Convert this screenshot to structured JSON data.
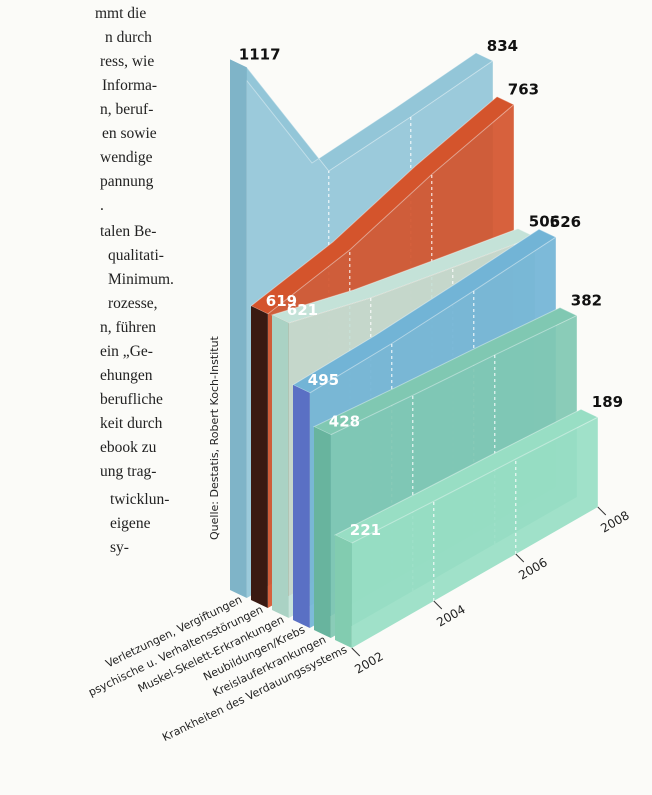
{
  "article_lines": [
    "mmt die",
    "n durch",
    "ress, wie",
    "Informa-",
    "n, beruf-",
    "en sowie",
    "wendige",
    "pannung",
    ".",
    "talen Be-",
    "qualitati-",
    "Minimum.",
    "rozesse,",
    "n, führen",
    "ein „Ge-",
    "ehungen",
    "berufliche",
    "keit durch",
    "ebook zu",
    "ung trag-",
    "twicklun-",
    "eigene",
    "sy-"
  ],
  "chart_data": {
    "type": "ribbon3d",
    "source": "Quelle: Destatis, Robert Koch-Institut",
    "categories": [
      "2002",
      "2004",
      "2006",
      "2008"
    ],
    "series": [
      {
        "name": "Verletzungen, Vergiftungen",
        "color": "#93c6d8",
        "side_color": "#7fb4c8",
        "values": [
          1117,
          800,
          815,
          834
        ]
      },
      {
        "name": "psychische u. Verhaltensstörungen",
        "color": "#d4542c",
        "side_color": "#3a1a12",
        "values": [
          619,
          655,
          715,
          763
        ]
      },
      {
        "name": "Muskel-Skelett-Erkrankungen",
        "color": "#c4e2d8",
        "side_color": "#aad2c4",
        "values": [
          621,
          575,
          540,
          506
        ]
      },
      {
        "name": "Neubildungen/Krebs",
        "color": "#72b4d6",
        "side_color": "#5a70c4",
        "values": [
          495,
          500,
          512,
          526
        ]
      },
      {
        "name": "Kreislauferkrankungen",
        "color": "#80c8b2",
        "side_color": "#68b49e",
        "values": [
          428,
          412,
          398,
          382
        ]
      },
      {
        "name": "Krankheiten des Verdauungssystems",
        "color": "#98dec4",
        "side_color": "#82ccb0",
        "values": [
          221,
          210,
          200,
          189
        ]
      }
    ]
  }
}
